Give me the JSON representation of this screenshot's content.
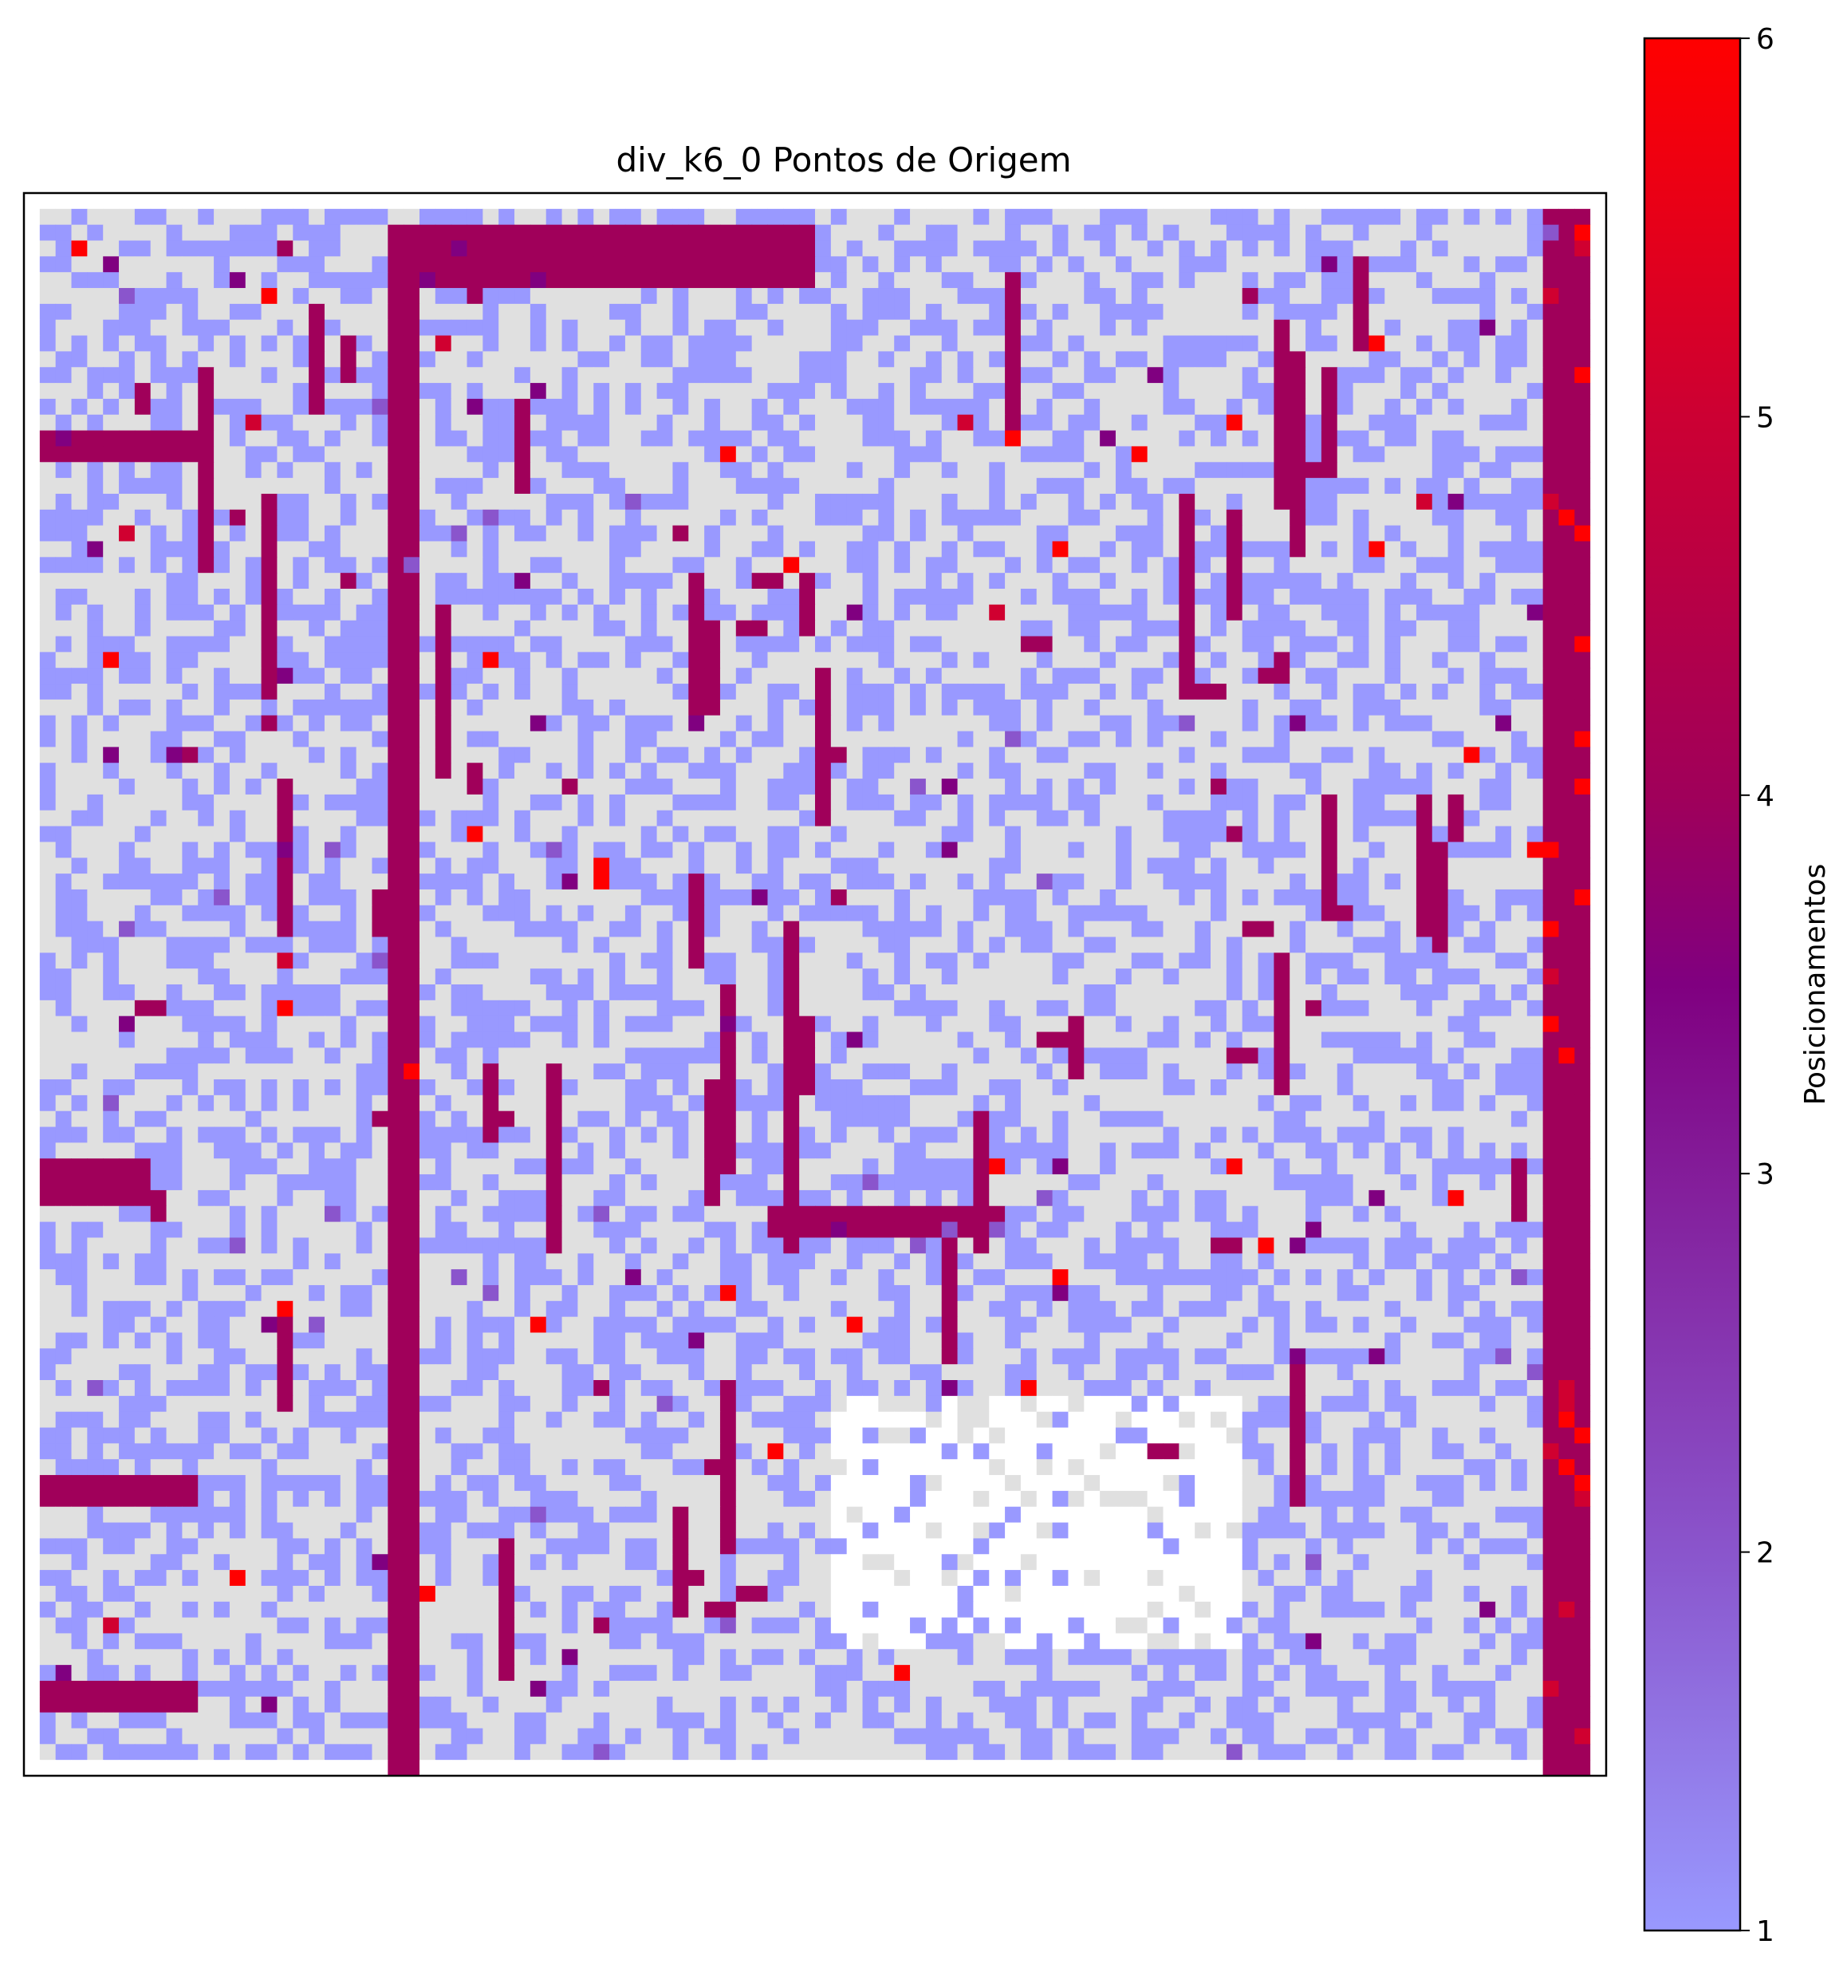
{
  "chart_data": {
    "type": "heatmap",
    "title": "div_k6_0 Pontos de Origem",
    "grid": false,
    "axes": {
      "x_ticks": [],
      "y_ticks": []
    },
    "heatmap": {
      "rows": 100,
      "cols": 100,
      "description_colors": {
        "unused_cell": "#ffffff",
        "zero_cell": "#e0e0e0"
      },
      "values_1_to_6": "cells colored on the colorbar scale; grid reproduced procedurally"
    },
    "structures": {
      "vertical_bands": [
        {
          "col": 23,
          "row_start": 2,
          "row_end": 99,
          "width": 2,
          "value": 4
        },
        {
          "col": 96,
          "row_start": 1,
          "row_end": 99,
          "width": 3,
          "value": 4
        }
      ],
      "horizontal_bands": [
        {
          "row": 2,
          "col_start": 23,
          "col_end": 49,
          "height": 4,
          "value": 4
        },
        {
          "row": 15,
          "col_start": 1,
          "col_end": 10,
          "height": 2,
          "value": 4
        },
        {
          "row": 61,
          "col_start": 1,
          "col_end": 7,
          "height": 3,
          "value": 4
        },
        {
          "row": 81,
          "col_start": 1,
          "col_end": 10,
          "height": 2,
          "value": 4
        },
        {
          "row": 94,
          "col_start": 1,
          "col_end": 10,
          "height": 2,
          "value": 4
        },
        {
          "row": 64,
          "col_start": 47,
          "col_end": 61,
          "height": 2,
          "value": 4
        }
      ]
    },
    "colorbar": {
      "label": "Posicionamentos",
      "min": 1,
      "max": 6,
      "ticks": [
        "1",
        "2",
        "3",
        "4",
        "5",
        "6"
      ],
      "colors": [
        "#9999ff",
        "#8040c0",
        "#800080",
        "#a0005a",
        "#d00030",
        "#ff0000"
      ]
    }
  }
}
